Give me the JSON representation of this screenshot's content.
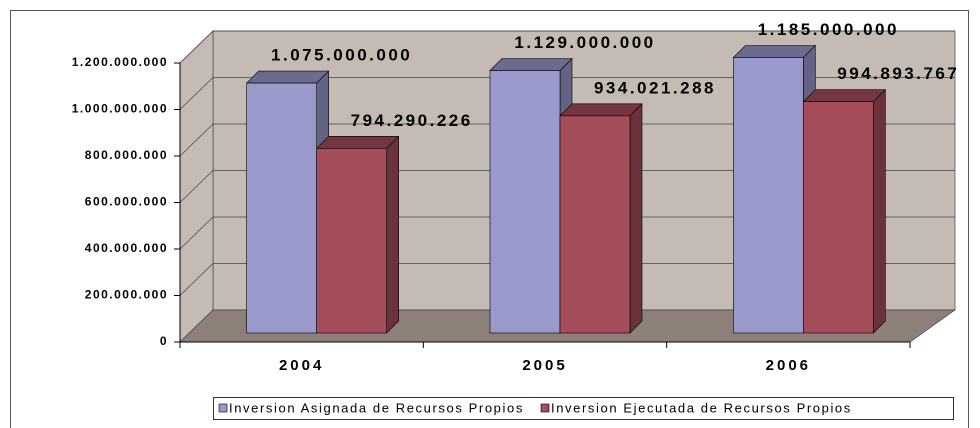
{
  "chart_data": {
    "type": "bar3d",
    "categories": [
      "2004",
      "2005",
      "2006"
    ],
    "series": [
      {
        "name": "Inversion Asignada de Recursos Propios",
        "color": "#9999cc",
        "values": [
          1075000000,
          1129000000,
          1185000000
        ],
        "value_labels": [
          "1.075.000.000",
          "1.129.000.000",
          "1.185.000.000"
        ]
      },
      {
        "name": "Inversion Ejecutada de Recursos Propios",
        "color": "#a64d5c",
        "values": [
          794290226,
          934021288,
          994893767
        ],
        "value_labels": [
          "794.290.226",
          "934.021.288",
          "994.893.767"
        ]
      }
    ],
    "ylim": [
      0,
      1200000000
    ],
    "yticks": [
      0,
      {
        "value": 200000000,
        "label": "200.000.000"
      },
      {
        "value": 400000000,
        "label": "400.000.000"
      },
      {
        "value": 600000000,
        "label": "600.000.000"
      },
      {
        "value": 800000000,
        "label": "800.000.000"
      },
      {
        "value": 1000000000,
        "label": "1.000.000.000"
      },
      {
        "value": 1200000000,
        "label": "1.200.000.000"
      }
    ],
    "grid": true,
    "legend": "bottom"
  }
}
